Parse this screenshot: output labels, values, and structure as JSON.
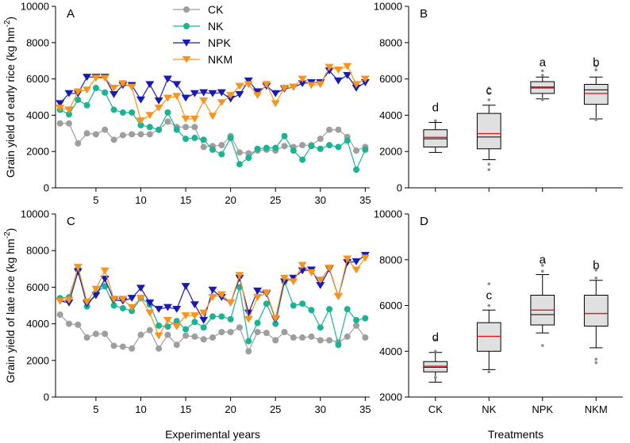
{
  "legend": [
    {
      "key": "CK",
      "label": "CK",
      "color": "#9e9e9e",
      "marker": "circle"
    },
    {
      "key": "NK",
      "label": "NK",
      "color": "#1ab394",
      "marker": "circle"
    },
    {
      "key": "NPK",
      "label": "NPK",
      "color": "#1a1ab3",
      "marker": "triangle-down"
    },
    {
      "key": "NKM",
      "label": "NKM",
      "color": "#f7931e",
      "marker": "triangle-down"
    }
  ],
  "box_style": {
    "fill": "#e0e0e0",
    "mean_color": "#e31a1c",
    "outlier_color": "#8c8c8c"
  },
  "chart_data": [
    {
      "panel": "A",
      "type": "line",
      "title": "",
      "xlabel": "",
      "ylabel": "Grain yield of early rice (kg hm-2)",
      "ylabel_main": "Grain yield of early rice (kg hm",
      "ylabel_sup": "-2",
      "ylabel_close": ")",
      "xlim": [
        0.5,
        35.5
      ],
      "ylim": [
        0,
        10000
      ],
      "xticks": [
        5,
        10,
        15,
        20,
        25,
        30,
        35
      ],
      "yticks": [
        0,
        2000,
        4000,
        6000,
        8000,
        10000
      ],
      "x": [
        1,
        2,
        3,
        4,
        5,
        6,
        7,
        8,
        9,
        10,
        11,
        12,
        13,
        14,
        15,
        16,
        17,
        18,
        19,
        20,
        21,
        22,
        23,
        24,
        25,
        26,
        27,
        28,
        29,
        30,
        31,
        32,
        33,
        34,
        35
      ],
      "series": [
        {
          "name": "CK",
          "values": [
            3550,
            3550,
            2450,
            3000,
            2950,
            3200,
            2650,
            2900,
            2950,
            2950,
            2950,
            3200,
            3650,
            3350,
            3350,
            3350,
            2250,
            2300,
            2350,
            2850,
            1950,
            1900,
            2050,
            2100,
            2050,
            2300,
            2250,
            2350,
            2350,
            2700,
            3200,
            3200,
            2800,
            2050,
            2250
          ]
        },
        {
          "name": "NK",
          "values": [
            4300,
            4050,
            4850,
            4550,
            5500,
            5250,
            4300,
            4150,
            4150,
            3450,
            3350,
            3200,
            4150,
            3200,
            2700,
            2750,
            2650,
            2100,
            1850,
            2750,
            1300,
            1650,
            2150,
            2200,
            2200,
            2850,
            2050,
            1550,
            2300,
            2150,
            2350,
            2250,
            2600,
            1000,
            2100
          ]
        },
        {
          "name": "NPK",
          "values": [
            4650,
            5200,
            5200,
            6100,
            6100,
            6100,
            5150,
            5650,
            5650,
            4850,
            5700,
            4800,
            6000,
            5700,
            4950,
            5200,
            5250,
            5200,
            5250,
            4900,
            5150,
            5900,
            5300,
            5600,
            5200,
            5450,
            5550,
            5750,
            5800,
            5800,
            6450,
            5900,
            6200,
            5500,
            5800
          ]
        },
        {
          "name": "NKM",
          "values": [
            4400,
            4300,
            5300,
            5400,
            6050,
            6050,
            5500,
            5750,
            5550,
            3700,
            4000,
            4400,
            4950,
            5050,
            3800,
            3800,
            4800,
            3950,
            4700,
            5100,
            5600,
            5700,
            5100,
            5700,
            4650,
            5500,
            5550,
            6000,
            5650,
            5700,
            6650,
            6500,
            6700,
            5700,
            6000
          ]
        }
      ]
    },
    {
      "panel": "B",
      "type": "box",
      "ylim": [
        0,
        10000
      ],
      "yticks": [
        0,
        2000,
        4000,
        6000,
        8000,
        10000
      ],
      "categories": [
        "CK",
        "NK",
        "NPK",
        "NKM"
      ],
      "boxes": [
        {
          "name": "CK",
          "q1": 2250,
          "median": 2700,
          "q3": 3200,
          "whisker_low": 1950,
          "whisker_high": 3600,
          "mean": 2780,
          "outliers": [
            3700
          ],
          "sig": "d"
        },
        {
          "name": "NK",
          "q1": 2150,
          "median": 2800,
          "q3": 4100,
          "whisker_low": 1550,
          "whisker_high": 4550,
          "mean": 2990,
          "outliers": [
            1000,
            1300,
            4850,
            5200,
            5500
          ],
          "sig": "c"
        },
        {
          "name": "NPK",
          "q1": 5200,
          "median": 5550,
          "q3": 5850,
          "whisker_low": 4900,
          "whisker_high": 6100,
          "mean": 5500,
          "outliers": [
            4850,
            6200,
            6450
          ],
          "sig": "a"
        },
        {
          "name": "NKM",
          "q1": 4600,
          "median": 5400,
          "q3": 5700,
          "whisker_low": 3800,
          "whisker_high": 6100,
          "mean": 5200,
          "outliers": [
            3750,
            6500,
            6700
          ],
          "sig": "b"
        }
      ]
    },
    {
      "panel": "C",
      "type": "line",
      "xlabel": "Experimental years",
      "ylabel": "Grain yield of late rice (kg hm-2)",
      "ylabel_main": "Grain yield of late rice (kg hm",
      "ylabel_sup": "-2",
      "ylabel_close": ")",
      "xlim": [
        0.5,
        35.5
      ],
      "ylim": [
        0,
        10000
      ],
      "xticks": [
        5,
        10,
        15,
        20,
        25,
        30,
        35
      ],
      "yticks": [
        0,
        2000,
        4000,
        6000,
        8000,
        10000
      ],
      "x": [
        1,
        2,
        3,
        4,
        5,
        6,
        7,
        8,
        9,
        10,
        11,
        12,
        13,
        14,
        15,
        16,
        17,
        18,
        19,
        20,
        21,
        22,
        23,
        24,
        25,
        26,
        27,
        28,
        29,
        30,
        31,
        32,
        33,
        34,
        35
      ],
      "series": [
        {
          "name": "CK",
          "values": [
            4500,
            4000,
            3950,
            3250,
            3450,
            3450,
            2800,
            2750,
            2650,
            3400,
            3650,
            2650,
            3400,
            2850,
            3350,
            3300,
            3150,
            3250,
            3550,
            3550,
            3800,
            2500,
            3550,
            3500,
            3100,
            3550,
            3250,
            3250,
            3300,
            3100,
            3100,
            3000,
            3300,
            3900,
            3250
          ]
        },
        {
          "name": "NK",
          "values": [
            5400,
            5450,
            7000,
            4950,
            5700,
            6050,
            5000,
            4850,
            4700,
            5400,
            5050,
            3900,
            3850,
            4150,
            3700,
            4100,
            3800,
            4400,
            4400,
            4250,
            6000,
            3050,
            4050,
            5100,
            4000,
            6300,
            5000,
            5100,
            4750,
            3800,
            4800,
            2850,
            4800,
            4200,
            4300
          ]
        },
        {
          "name": "NPK",
          "values": [
            5250,
            5150,
            6850,
            5100,
            5550,
            6450,
            5300,
            5250,
            5400,
            5950,
            5150,
            4800,
            4900,
            4800,
            6050,
            5050,
            4200,
            5850,
            5450,
            5150,
            6500,
            4600,
            5800,
            5650,
            4250,
            6300,
            6500,
            6900,
            6950,
            6100,
            7000,
            5500,
            7350,
            7400,
            7750
          ]
        },
        {
          "name": "NKM",
          "values": [
            5250,
            5300,
            7100,
            5200,
            5900,
            6900,
            5350,
            5350,
            4900,
            5400,
            4600,
            3350,
            4200,
            3850,
            4450,
            4450,
            4600,
            5450,
            5600,
            5150,
            6650,
            4250,
            5450,
            5700,
            4300,
            6500,
            6300,
            7200,
            6800,
            6400,
            7050,
            5500,
            7550,
            6950,
            7600
          ]
        }
      ]
    },
    {
      "panel": "D",
      "type": "box",
      "xlabel": "Treatments",
      "ylim": [
        2000,
        10000
      ],
      "yticks": [
        2000,
        4000,
        6000,
        8000,
        10000
      ],
      "categories": [
        "CK",
        "NK",
        "NPK",
        "NKM"
      ],
      "boxes": [
        {
          "name": "CK",
          "q1": 3100,
          "median": 3300,
          "q3": 3550,
          "whisker_low": 2650,
          "whisker_high": 3950,
          "mean": 3350,
          "outliers": [
            2850,
            4000,
            4500
          ],
          "sig": "d"
        },
        {
          "name": "NK",
          "q1": 4000,
          "median": 4650,
          "q3": 5250,
          "whisker_low": 3200,
          "whisker_high": 5800,
          "mean": 4650,
          "outliers": [
            3100,
            6000,
            6950
          ],
          "sig": "c"
        },
        {
          "name": "NPK",
          "q1": 5150,
          "median": 5600,
          "q3": 6450,
          "whisker_low": 4800,
          "whisker_high": 7350,
          "mean": 5800,
          "outliers": [
            4250,
            7500,
            7750
          ],
          "sig": "a"
        },
        {
          "name": "NKM",
          "q1": 5100,
          "median": 5650,
          "q3": 6450,
          "whisker_low": 4150,
          "whisker_high": 7100,
          "mean": 5650,
          "outliers": [
            3500,
            3650,
            7200,
            7550
          ],
          "sig": "b"
        }
      ]
    }
  ]
}
